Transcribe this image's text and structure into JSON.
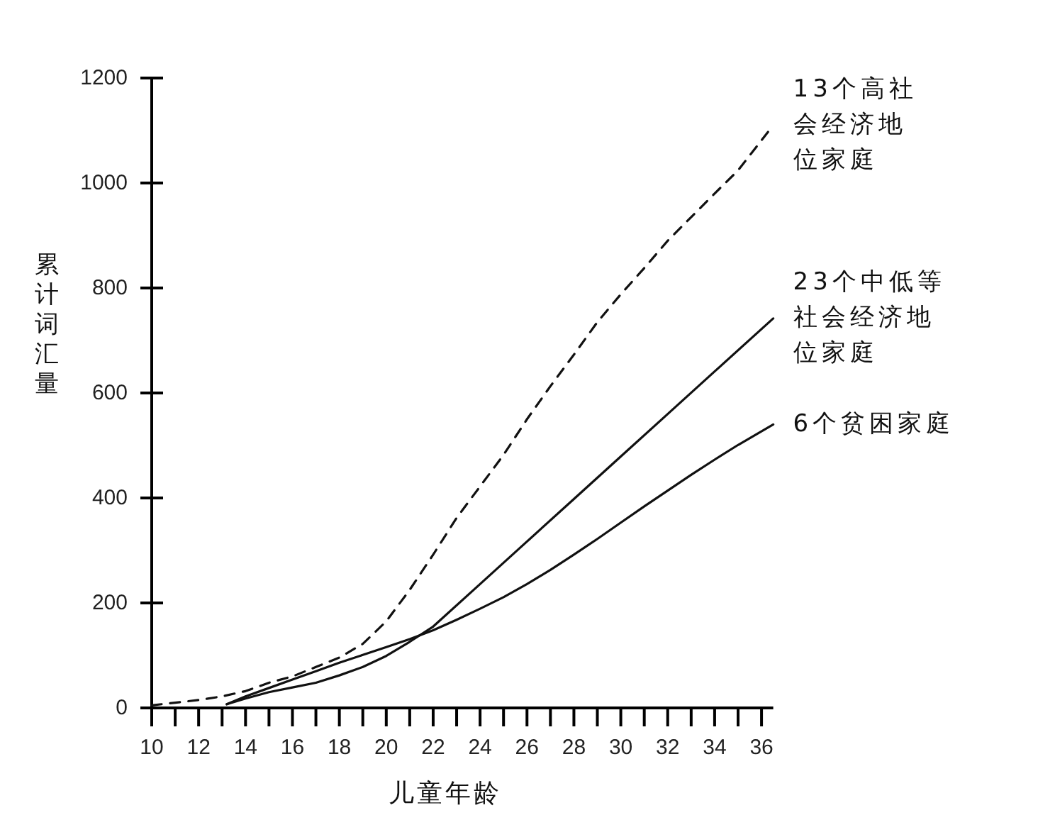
{
  "chart_data": {
    "type": "line",
    "xlabel": "儿童年龄",
    "ylabel": "累计词汇量",
    "xlim": [
      10,
      36.5
    ],
    "xticks": [
      10,
      {
        "value": 11,
        "label": null
      },
      12,
      {
        "value": 13,
        "label": null
      },
      14,
      {
        "value": 15,
        "label": null
      },
      16,
      {
        "value": 17,
        "label": null
      },
      18,
      {
        "value": 19,
        "label": null
      },
      20,
      {
        "value": 21,
        "label": null
      },
      22,
      {
        "value": 23,
        "label": null
      },
      24,
      {
        "value": 25,
        "label": null
      },
      26,
      {
        "value": 27,
        "label": null
      },
      28,
      {
        "value": 29,
        "label": null
      },
      30,
      {
        "value": 31,
        "label": null
      },
      32,
      {
        "value": 33,
        "label": null
      },
      34,
      {
        "value": 35,
        "label": null
      },
      36
    ],
    "ylim": [
      0,
      1200
    ],
    "yticks": [
      0,
      200,
      400,
      600,
      800,
      1000,
      1200
    ],
    "series": [
      {
        "name": "13个高社会经济地位家庭",
        "color": "#111111",
        "line_style": "dashed",
        "x": [
          10,
          11,
          12,
          13,
          14,
          15,
          16,
          17,
          18,
          19,
          20,
          21,
          22,
          23,
          24,
          25,
          26,
          27,
          28,
          29,
          30,
          31,
          32,
          33,
          34,
          35,
          36.5
        ],
        "values": [
          5,
          10,
          15,
          22,
          32,
          48,
          60,
          78,
          96,
          122,
          165,
          225,
          292,
          362,
          422,
          482,
          550,
          613,
          673,
          735,
          788,
          838,
          890,
          935,
          980,
          1024,
          1110
        ]
      },
      {
        "name": "23个中低等社会经济地位家庭",
        "color": "#111111",
        "line_style": "solid",
        "x": [
          13.2,
          14,
          15,
          16,
          17,
          18,
          19,
          20,
          21,
          22,
          24,
          26,
          28,
          30,
          32,
          34,
          36.5
        ],
        "values": [
          7,
          18,
          30,
          39,
          48,
          62,
          78,
          99,
          126,
          155,
          236,
          317,
          398,
          479,
          560,
          641,
          742
        ]
      },
      {
        "name": "6个贫困家庭",
        "color": "#111111",
        "line_style": "solid",
        "x": [
          13.2,
          14,
          15,
          16,
          17,
          18,
          19,
          20,
          21,
          22,
          23,
          24,
          25,
          26,
          27,
          28,
          29,
          30,
          31,
          32,
          33,
          34,
          35,
          36.5
        ],
        "values": [
          7,
          22,
          38,
          54,
          70,
          86,
          101,
          116,
          131,
          148,
          168,
          189,
          211,
          236,
          263,
          292,
          322,
          353,
          384,
          414,
          444,
          473,
          501,
          540
        ]
      }
    ]
  }
}
